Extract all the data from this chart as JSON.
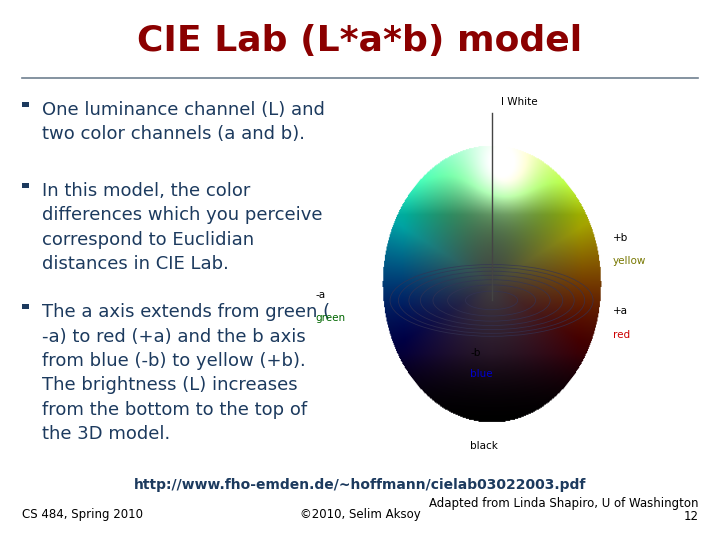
{
  "title": "CIE Lab (L*a*b) model",
  "title_color": "#8B0000",
  "title_fontsize": 26,
  "bg_color": "#FFFFFF",
  "separator_color": "#708090",
  "bullet_color": "#1C3A5E",
  "bullet_fontsize": 13,
  "bullets": [
    "One luminance channel (L) and\ntwo color channels (a and b).",
    "In this model, the color\ndifferences which you perceive\ncorrespond to Euclidian\ndistances in CIE Lab.",
    "The a axis extends from green (\n-a) to red (+a) and the b axis\nfrom blue (-b) to yellow (+b).\nThe brightness (L) increases\nfrom the bottom to the top of\nthe 3D model."
  ],
  "bullet_square_color": "#1C3A5E",
  "footer_url": "http://www.fho-emden.de/~hoffmann/cielab03022003.pdf",
  "footer_url_fontsize": 10,
  "footer_url_color": "#1C3A5E",
  "footer_left": "CS 484, Spring 2010",
  "footer_center": "©2010, Selim Aksoy",
  "footer_right_line1": "Adapted from Linda Shapiro, U of Washington",
  "footer_right_line2": "12",
  "footer_fontsize": 8.5,
  "footer_color": "#000000"
}
